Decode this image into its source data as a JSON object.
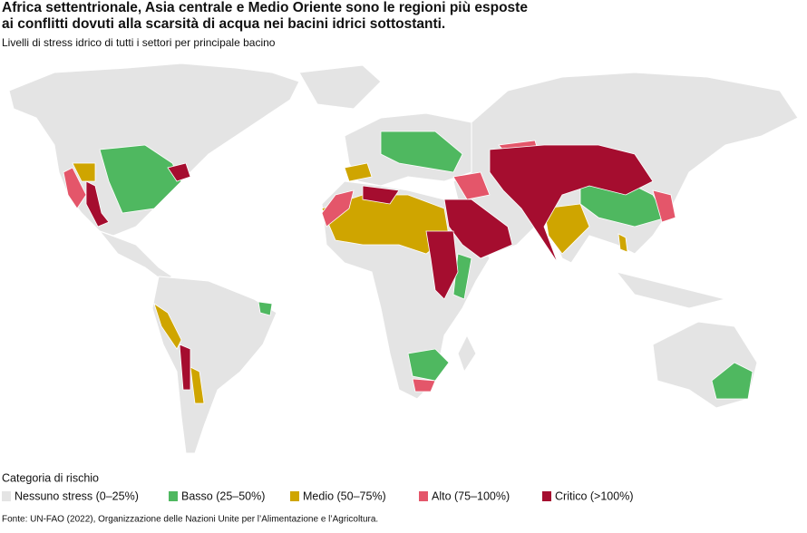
{
  "title": [
    "Africa settentrionale, Asia centrale e Medio Oriente sono le regioni più esposte",
    "ai conflitti dovuti alla scarsità di acqua nei bacini idrici sottostanti."
  ],
  "subtitle": "Livelli di stress idrico di tutti i settori per principale bacino",
  "legend": {
    "title": "Categoria di rischio",
    "items": [
      {
        "label": "Nessuno stress (0–25%)",
        "color": "#e4e4e4"
      },
      {
        "label": "Basso (25–50%)",
        "color": "#4fb860"
      },
      {
        "label": "Medio (50–75%)",
        "color": "#cfa500"
      },
      {
        "label": "Alto (75–100%)",
        "color": "#e4566a"
      },
      {
        "label": "Critico (>100%)",
        "color": "#a50d2f"
      }
    ]
  },
  "source": "Fonte: UN-FAO (2022), Organizzazione delle Nazioni Unite per l’Alimentazione e l’Agricoltura."
}
